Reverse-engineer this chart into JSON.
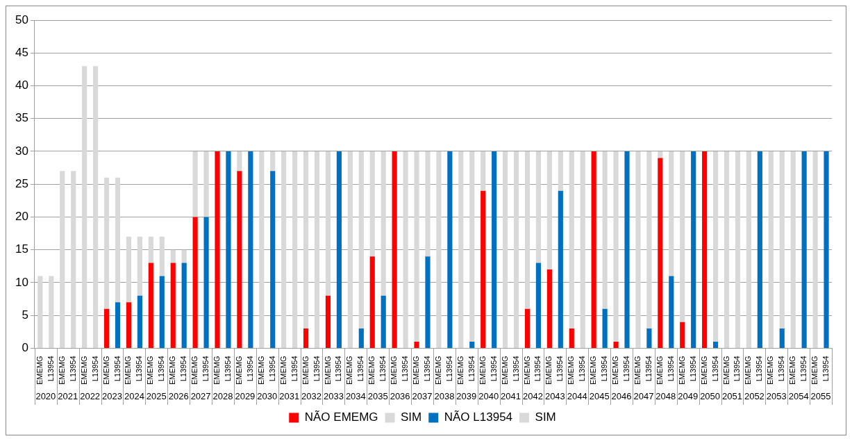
{
  "chart_data": {
    "type": "bar",
    "stacked": true,
    "legend": "bottom",
    "grid": "y",
    "categories": [
      "EMEMG",
      "L13954",
      "EMEMG",
      "L13954",
      "EMEMG",
      "L13954",
      "EMEMG",
      "L13954",
      "EMEMG",
      "L13954",
      "EMEMG",
      "L13954",
      "EMEMG",
      "L13954",
      "EMEMG",
      "L13954",
      "EMEMG",
      "L13954",
      "EMEMG",
      "L13954",
      "EMEMG",
      "L13954",
      "EMEMG",
      "L13954",
      "EMEMG",
      "L13954",
      "EMEMG",
      "L13954",
      "EMEMG",
      "L13954",
      "EMEMG",
      "L13954",
      "EMEMG",
      "L13954",
      "EMEMG",
      "L13954",
      "EMEMG",
      "L13954",
      "EMEMG",
      "L13954",
      "EMEMG",
      "L13954",
      "EMEMG",
      "L13954",
      "EMEMG",
      "L13954",
      "EMEMG",
      "L13954",
      "EMEMG",
      "L13954",
      "EMEMG",
      "L13954",
      "EMEMG",
      "L13954",
      "EMEMG",
      "L13954",
      "EMEMG",
      "L13954",
      "EMEMG",
      "L13954",
      "EMEMG",
      "L13954",
      "EMEMG",
      "L13954",
      "EMEMG",
      "L13954",
      "EMEMG",
      "L13954",
      "EMEMG",
      "L13954",
      "EMEMG",
      "L13954"
    ],
    "annotations": [
      "2020",
      "2021",
      "2022",
      "2023",
      "2024",
      "2025",
      "2026",
      "2027",
      "2028",
      "2029",
      "2030",
      "2031",
      "2032",
      "2033",
      "2034",
      "2035",
      "2036",
      "2037",
      "2038",
      "2039",
      "2040",
      "2041",
      "2042",
      "2043",
      "2044",
      "2045",
      "2046",
      "2047",
      "2048",
      "2049",
      "2050",
      "2051",
      "2052",
      "2053",
      "2054",
      "2055"
    ],
    "ylim": [
      0,
      50
    ],
    "yticks": [
      0,
      5,
      10,
      15,
      20,
      25,
      30,
      35,
      40,
      45,
      50
    ],
    "series": [
      {
        "name": "NÃO EMEMG",
        "color": "#ff0000",
        "values": [
          0,
          null,
          0,
          null,
          0,
          null,
          6,
          null,
          7,
          null,
          13,
          null,
          13,
          null,
          20,
          null,
          30,
          null,
          27,
          null,
          0,
          null,
          0,
          null,
          3,
          null,
          8,
          null,
          0,
          null,
          14,
          null,
          30,
          null,
          1,
          null,
          0,
          null,
          0,
          null,
          24,
          null,
          0,
          null,
          6,
          null,
          12,
          null,
          3,
          null,
          30,
          null,
          1,
          null,
          0,
          null,
          29,
          null,
          4,
          null,
          30,
          null,
          0,
          null,
          0,
          null,
          0,
          null,
          0,
          null,
          0,
          null
        ]
      },
      {
        "name": "SIM",
        "color": "#d9d9d9",
        "values": [
          11,
          null,
          27,
          null,
          43,
          null,
          20,
          null,
          10,
          null,
          4,
          null,
          2,
          null,
          10,
          null,
          0,
          null,
          3,
          null,
          30,
          null,
          30,
          null,
          27,
          null,
          22,
          null,
          30,
          null,
          16,
          null,
          0,
          null,
          29,
          null,
          30,
          null,
          30,
          null,
          6,
          null,
          30,
          null,
          24,
          null,
          18,
          null,
          27,
          null,
          0,
          null,
          29,
          null,
          30,
          null,
          1,
          null,
          26,
          null,
          0,
          null,
          30,
          null,
          30,
          null,
          30,
          null,
          30,
          null,
          30,
          null
        ]
      },
      {
        "name": "NÃO L13954",
        "color": "#0070c0",
        "values": [
          null,
          0,
          null,
          0,
          null,
          0,
          null,
          7,
          null,
          8,
          null,
          11,
          null,
          13,
          null,
          20,
          null,
          30,
          null,
          30,
          null,
          27,
          null,
          0,
          null,
          0,
          null,
          30,
          null,
          3,
          null,
          8,
          null,
          0,
          null,
          14,
          null,
          30,
          null,
          1,
          null,
          30,
          null,
          0,
          null,
          13,
          null,
          24,
          null,
          0,
          null,
          6,
          null,
          30,
          null,
          3,
          null,
          11,
          null,
          30,
          null,
          1,
          null,
          0,
          null,
          30,
          null,
          3,
          null,
          30,
          null,
          30
        ]
      },
      {
        "name": "SIM",
        "color": "#d9d9d9",
        "values": [
          null,
          11,
          null,
          27,
          null,
          43,
          null,
          19,
          null,
          9,
          null,
          6,
          null,
          2,
          null,
          10,
          null,
          0,
          null,
          0,
          null,
          3,
          null,
          30,
          null,
          30,
          null,
          0,
          null,
          27,
          null,
          22,
          null,
          30,
          null,
          16,
          null,
          0,
          null,
          29,
          null,
          0,
          null,
          30,
          null,
          17,
          null,
          6,
          null,
          30,
          null,
          24,
          null,
          0,
          null,
          27,
          null,
          19,
          null,
          0,
          null,
          29,
          null,
          30,
          null,
          0,
          null,
          27,
          null,
          0,
          null,
          0
        ]
      }
    ]
  }
}
